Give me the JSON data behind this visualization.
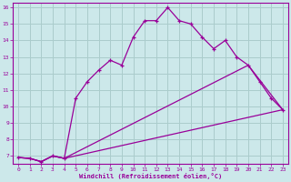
{
  "xlabel": "Windchill (Refroidissement éolien,°C)",
  "background_color": "#cce8ea",
  "line_color": "#990099",
  "grid_color": "#aacccc",
  "line1_x": [
    0,
    1,
    2,
    3,
    4,
    5,
    6,
    7,
    8,
    9,
    10,
    11,
    12,
    13,
    14,
    15,
    16,
    17,
    18,
    19,
    20,
    21,
    22,
    23
  ],
  "line1_y": [
    6.9,
    6.85,
    6.65,
    7.0,
    6.85,
    10.5,
    11.5,
    12.2,
    12.8,
    12.5,
    14.2,
    15.2,
    15.2,
    16.0,
    15.2,
    15.0,
    14.2,
    13.5,
    14.0,
    13.0,
    12.5,
    11.5,
    10.5,
    9.8
  ],
  "line2_x": [
    0,
    1,
    2,
    3,
    4,
    23
  ],
  "line2_y": [
    6.9,
    6.85,
    6.65,
    7.0,
    6.85,
    9.8
  ],
  "line3_x": [
    0,
    1,
    2,
    3,
    4,
    20,
    23
  ],
  "line3_y": [
    6.9,
    6.85,
    6.65,
    7.0,
    6.85,
    12.5,
    9.8
  ],
  "xlim": [
    -0.5,
    23.5
  ],
  "ylim": [
    6.5,
    16.3
  ],
  "xticks": [
    0,
    1,
    2,
    3,
    4,
    5,
    6,
    7,
    8,
    9,
    10,
    11,
    12,
    13,
    14,
    15,
    16,
    17,
    18,
    19,
    20,
    21,
    22,
    23
  ],
  "yticks": [
    7,
    8,
    9,
    10,
    11,
    12,
    13,
    14,
    15,
    16
  ]
}
